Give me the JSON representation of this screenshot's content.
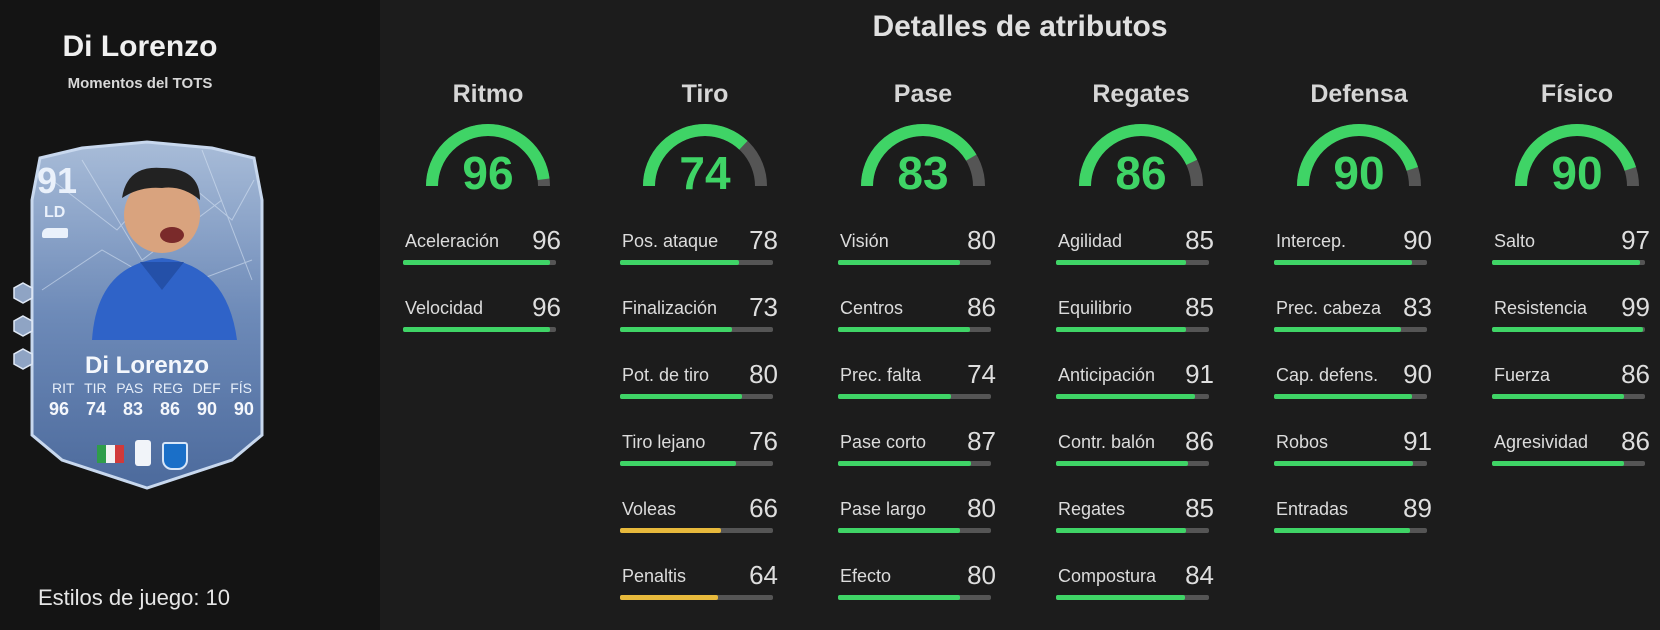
{
  "player": {
    "name": "Di Lorenzo",
    "subtitle": "Momentos del TOTS",
    "playstyles_label": "Estilos de juego: 10"
  },
  "card": {
    "rating": "91",
    "position": "LD",
    "name": "Di Lorenzo",
    "stat_labels": [
      "RIT",
      "TIR",
      "PAS",
      "REG",
      "DEF",
      "FÍS"
    ],
    "stat_values": [
      "96",
      "74",
      "83",
      "86",
      "90",
      "90"
    ]
  },
  "section_title": "Detalles de atributos",
  "colors": {
    "high": "#3fd466",
    "mid": "#e7b93c",
    "track": "#555555"
  },
  "categories": [
    {
      "name": "Ritmo",
      "value": "96",
      "score": 96,
      "stats": [
        {
          "label": "Aceleración",
          "value": "96",
          "score": 96
        },
        {
          "label": "Velocidad",
          "value": "96",
          "score": 96
        }
      ]
    },
    {
      "name": "Tiro",
      "value": "74",
      "score": 74,
      "stats": [
        {
          "label": "Pos. ataque",
          "value": "78",
          "score": 78
        },
        {
          "label": "Finalización",
          "value": "73",
          "score": 73
        },
        {
          "label": "Pot. de tiro",
          "value": "80",
          "score": 80
        },
        {
          "label": "Tiro lejano",
          "value": "76",
          "score": 76
        },
        {
          "label": "Voleas",
          "value": "66",
          "score": 66
        },
        {
          "label": "Penaltis",
          "value": "64",
          "score": 64
        }
      ]
    },
    {
      "name": "Pase",
      "value": "83",
      "score": 83,
      "stats": [
        {
          "label": "Visión",
          "value": "80",
          "score": 80
        },
        {
          "label": "Centros",
          "value": "86",
          "score": 86
        },
        {
          "label": "Prec. falta",
          "value": "74",
          "score": 74
        },
        {
          "label": "Pase corto",
          "value": "87",
          "score": 87
        },
        {
          "label": "Pase largo",
          "value": "80",
          "score": 80
        },
        {
          "label": "Efecto",
          "value": "80",
          "score": 80
        }
      ]
    },
    {
      "name": "Regates",
      "value": "86",
      "score": 86,
      "stats": [
        {
          "label": "Agilidad",
          "value": "85",
          "score": 85
        },
        {
          "label": "Equilibrio",
          "value": "85",
          "score": 85
        },
        {
          "label": "Anticipación",
          "value": "91",
          "score": 91
        },
        {
          "label": "Contr. balón",
          "value": "86",
          "score": 86
        },
        {
          "label": "Regates",
          "value": "85",
          "score": 85
        },
        {
          "label": "Compostura",
          "value": "84",
          "score": 84
        }
      ]
    },
    {
      "name": "Defensa",
      "value": "90",
      "score": 90,
      "stats": [
        {
          "label": "Intercep.",
          "value": "90",
          "score": 90
        },
        {
          "label": "Prec. cabeza",
          "value": "83",
          "score": 83
        },
        {
          "label": "Cap. defens.",
          "value": "90",
          "score": 90
        },
        {
          "label": "Robos",
          "value": "91",
          "score": 91
        },
        {
          "label": "Entradas",
          "value": "89",
          "score": 89
        }
      ]
    },
    {
      "name": "Físico",
      "value": "90",
      "score": 90,
      "stats": [
        {
          "label": "Salto",
          "value": "97",
          "score": 97
        },
        {
          "label": "Resistencia",
          "value": "99",
          "score": 99
        },
        {
          "label": "Fuerza",
          "value": "86",
          "score": 86
        },
        {
          "label": "Agresividad",
          "value": "86",
          "score": 86
        }
      ]
    }
  ]
}
